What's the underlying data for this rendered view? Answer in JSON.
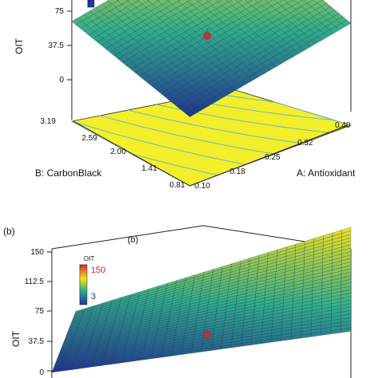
{
  "colors": {
    "low": "#1e2e8f",
    "mid": "#2fae8a",
    "high": "#f5e31a",
    "floor": "#f3ef2a",
    "legend_high": "#d9262b",
    "legend_low": "#2035a8",
    "point": "#d9262b"
  },
  "chart_data": [
    {
      "type": "surface",
      "panel_label": "",
      "zlabel": "OIT",
      "xlabel": "A: Antioxidant",
      "ylabel": "B: CarbonBlack",
      "z_ticks": [
        "0",
        "37.5",
        "75"
      ],
      "x_ticks": [
        "0.10",
        "0.18",
        "0.25",
        "0.32",
        "0.40"
      ],
      "y_ticks": [
        "0.81",
        "1.41",
        "2.00",
        "2.59",
        "3.19"
      ],
      "zlim": [
        0,
        112.5
      ],
      "xlim": [
        0.1,
        0.4
      ],
      "ylim": [
        0.81,
        3.19
      ],
      "corner_z": {
        "a0_b0": 3,
        "a1_b0": 60,
        "a0_b1": 62,
        "a1_b1": 115
      },
      "design_point": {
        "value": 8
      }
    },
    {
      "type": "surface",
      "panel_label": "(b)",
      "inner_label": "(b)",
      "zlabel": "OIT",
      "z_ticks": [
        "0",
        "37.5",
        "75",
        "112.5",
        "150"
      ],
      "zlim": [
        0,
        150
      ],
      "legend": {
        "title": "OIT",
        "max_label": "150",
        "min_label": "3"
      },
      "corner_z": {
        "left_front": 3,
        "right_front": 55,
        "left_back": 60,
        "right_back": 148
      },
      "design_point": {
        "value": 8
      }
    }
  ]
}
